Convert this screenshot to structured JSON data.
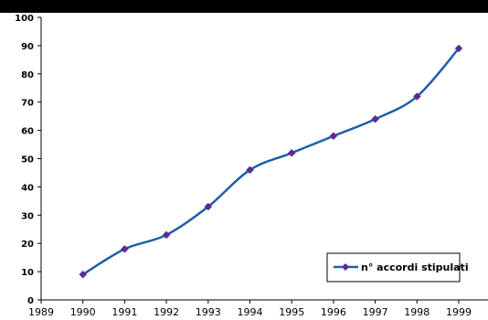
{
  "chart_data": {
    "type": "line",
    "title": "",
    "xlabel": "",
    "ylabel": "",
    "x_ticks": [
      "1989",
      "1990",
      "1991",
      "1992",
      "1993",
      "1994",
      "1995",
      "1996",
      "1997",
      "1998",
      "1999"
    ],
    "y_ticks": [
      "0",
      "10",
      "20",
      "30",
      "40",
      "50",
      "60",
      "70",
      "80",
      "90",
      "100"
    ],
    "xlim": [
      1989,
      1999.7
    ],
    "ylim": [
      0,
      100
    ],
    "grid": false,
    "legend_position": "bottom-right",
    "series": [
      {
        "name": "n° accordi stipulati",
        "line_color": "#1F5FA6",
        "marker_color": "#5B2C8F",
        "marker": "diamond",
        "smooth": true,
        "x": [
          1990,
          1991,
          1992,
          1993,
          1994,
          1995,
          1996,
          1997,
          1998,
          1999
        ],
        "y": [
          9,
          18,
          23,
          33,
          46,
          52,
          58,
          64,
          72,
          89
        ]
      }
    ]
  },
  "colors": {
    "header_band": "#000000",
    "axis": "#000000",
    "legend_border": "#000000"
  }
}
